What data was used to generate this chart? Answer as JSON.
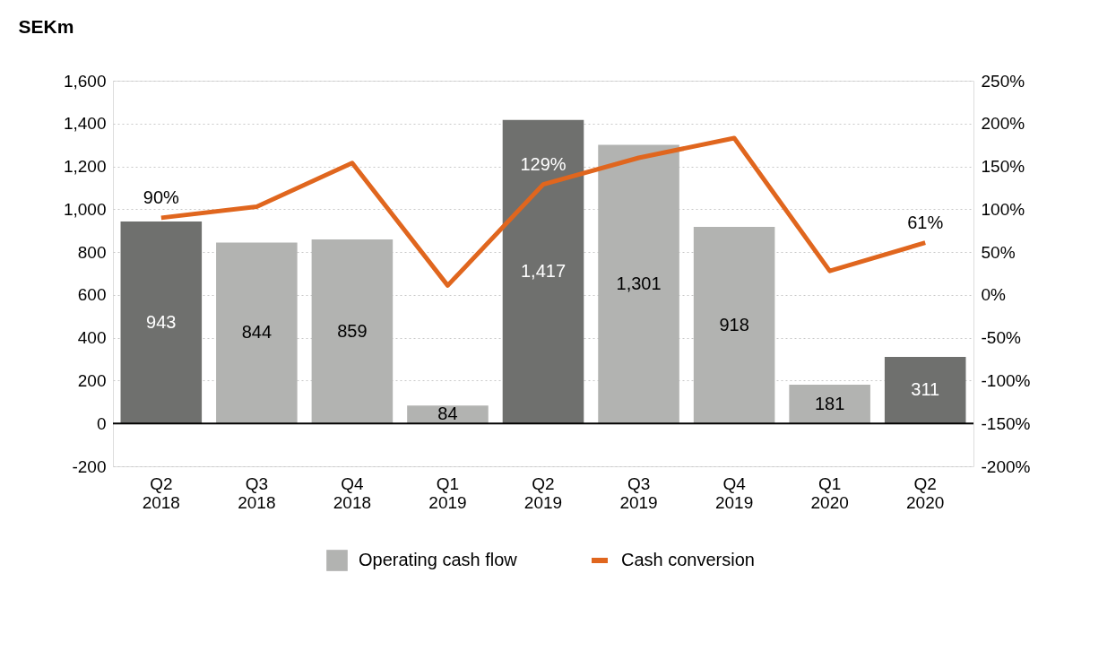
{
  "chart_data": {
    "type": "bar",
    "title": "SEKm",
    "categories": [
      "Q2 2018",
      "Q3 2018",
      "Q4 2018",
      "Q1 2019",
      "Q2 2019",
      "Q3 2019",
      "Q4 2019",
      "Q1 2020",
      "Q2 2020"
    ],
    "series": [
      {
        "name": "Operating cash flow",
        "color": "#b2b3b1",
        "colors": [
          "#6f706e",
          "#b2b3b1",
          "#b2b3b1",
          "#b2b3b1",
          "#6f706e",
          "#b2b3b1",
          "#b2b3b1",
          "#b2b3b1",
          "#6f706e"
        ],
        "values": [
          943,
          844,
          859,
          84,
          1417,
          1301,
          918,
          181,
          311
        ],
        "value_labels": [
          "943",
          "844",
          "859",
          "84",
          "1,417",
          "1,301",
          "918",
          "181",
          "311"
        ]
      },
      {
        "name": "Cash conversion",
        "type": "line",
        "axis": "y2",
        "color": "#e0661e",
        "values": [
          90,
          103,
          154,
          11,
          129,
          160,
          183,
          28,
          61
        ],
        "value_labels": [
          "90%",
          null,
          null,
          null,
          "129%",
          null,
          null,
          null,
          "61%"
        ]
      }
    ],
    "ylim": [
      -200,
      1600
    ],
    "yticks": [
      {
        "value": -200,
        "label": "-200"
      },
      0,
      200,
      400,
      600,
      800,
      {
        "value": 1000,
        "label": "1,000"
      },
      {
        "value": 1200,
        "label": "1,200"
      },
      {
        "value": 1400,
        "label": "1,400"
      },
      {
        "value": 1600,
        "label": "1,600"
      }
    ],
    "y2lim": [
      -200,
      250
    ],
    "y2ticks": [
      {
        "value": -200,
        "label": "-200%"
      },
      {
        "value": -150,
        "label": "-150%"
      },
      {
        "value": -100,
        "label": "-100%"
      },
      {
        "value": -50,
        "label": "-50%"
      },
      {
        "value": 0,
        "label": "0%"
      },
      {
        "value": 50,
        "label": "50%"
      },
      {
        "value": 100,
        "label": "100%"
      },
      {
        "value": 150,
        "label": "150%"
      },
      {
        "value": 200,
        "label": "200%"
      },
      {
        "value": 250,
        "label": "250%"
      }
    ],
    "ref_lines": [
      {
        "axis": "y",
        "value": 0,
        "color": "#000000"
      }
    ],
    "grid": "y",
    "legend": "bottom"
  }
}
